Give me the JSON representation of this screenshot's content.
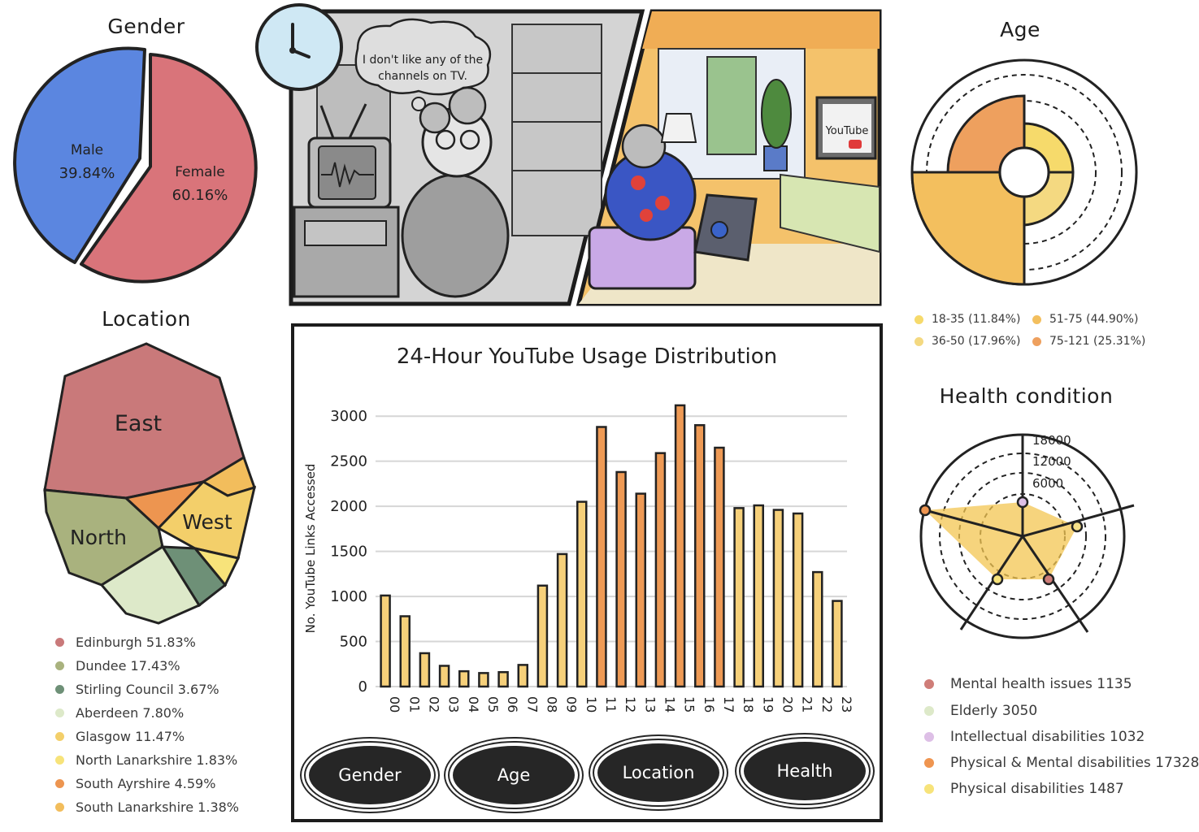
{
  "gender": {
    "title": "Gender",
    "slices": [
      {
        "label": "Male",
        "value": 39.84,
        "value_label": "39.84%",
        "color": "#5b86e0"
      },
      {
        "label": "Female",
        "value": 60.16,
        "value_label": "60.16%",
        "color": "#d9747a"
      }
    ]
  },
  "location": {
    "title": "Location",
    "region_labels": [
      "East",
      "North",
      "West"
    ],
    "legend": [
      {
        "label": "Edinburgh 51.83%",
        "color": "#c9797a"
      },
      {
        "label": "Dundee 17.43%",
        "color": "#a9b27e"
      },
      {
        "label": "Stirling Council 3.67%",
        "color": "#6e9077"
      },
      {
        "label": "Aberdeen 7.80%",
        "color": "#dde9c9"
      },
      {
        "label": "Glasgow 11.47%",
        "color": "#f3cf6a"
      },
      {
        "label": "North Lanarkshire 1.83%",
        "color": "#f7e37a"
      },
      {
        "label": "South Ayrshire 4.59%",
        "color": "#ed9550"
      },
      {
        "label": "South Lanarkshire 1.38%",
        "color": "#f2bd5c"
      }
    ]
  },
  "comic": {
    "speech_bubble": "I don't like any of the channels on TV.",
    "tv_logo": "YouTube"
  },
  "age": {
    "title": "Age",
    "legend": [
      {
        "label": "18-35 (11.84%)",
        "color": "#f6da6b"
      },
      {
        "label": "51-75 (44.90%)",
        "color": "#f3bf5e"
      },
      {
        "label": "36-50 (17.96%)",
        "color": "#f4d981"
      },
      {
        "label": "75-121 (25.31%)",
        "color": "#eea05e"
      }
    ]
  },
  "health": {
    "title": "Health condition",
    "legend": [
      {
        "label": "Mental health issues 1135",
        "color": "#cf7d78"
      },
      {
        "label": "Elderly 3050",
        "color": "#dde9c9"
      },
      {
        "label": "Intellectual disabilities 1032",
        "color": "#ddbfe6"
      },
      {
        "label": "Physical & Mental disabilities 17328",
        "color": "#ef9550"
      },
      {
        "label": "Physical disabilities 1487",
        "color": "#f7e37a"
      }
    ]
  },
  "buttons": {
    "gender": "Gender",
    "age": "Age",
    "location": "Location",
    "health": "Health"
  },
  "chart_data": [
    {
      "type": "bar",
      "title": "24-Hour YouTube Usage Distribution",
      "xlabel": "",
      "ylabel": "No. YouTube Links Accessed",
      "ylim": [
        0,
        3200
      ],
      "yticks": [
        0,
        500,
        1000,
        1500,
        2000,
        2500,
        3000
      ],
      "categories": [
        "00",
        "01",
        "02",
        "03",
        "04",
        "05",
        "06",
        "07",
        "08",
        "09",
        "10",
        "11",
        "12",
        "13",
        "14",
        "15",
        "16",
        "17",
        "18",
        "19",
        "20",
        "21",
        "22",
        "23"
      ],
      "values": [
        1010,
        780,
        370,
        230,
        170,
        150,
        160,
        240,
        1120,
        1470,
        2050,
        2880,
        2380,
        2140,
        2590,
        3120,
        2900,
        2650,
        1980,
        2010,
        1960,
        1920,
        1270,
        950
      ],
      "highlight_color": "#ee9a55",
      "bar_color": "#f6d07a"
    },
    {
      "type": "pie",
      "title": "Gender",
      "labels": [
        "Male",
        "Female"
      ],
      "values": [
        39.84,
        60.16
      ]
    },
    {
      "type": "pie",
      "title": "Age",
      "labels": [
        "18-35",
        "36-50",
        "51-75",
        "75-121"
      ],
      "values": [
        11.84,
        17.96,
        44.9,
        25.31
      ]
    },
    {
      "type": "radar",
      "title": "Health condition",
      "labels": [
        "Intellectual disabilities",
        "Mental health issues",
        "Physical disabilities",
        "Elderly",
        "Physical & Mental disabilities"
      ],
      "values": [
        1032,
        1135,
        1487,
        3050,
        17328
      ],
      "tick_labels": [
        "6000",
        "12000",
        "18000"
      ]
    }
  ]
}
